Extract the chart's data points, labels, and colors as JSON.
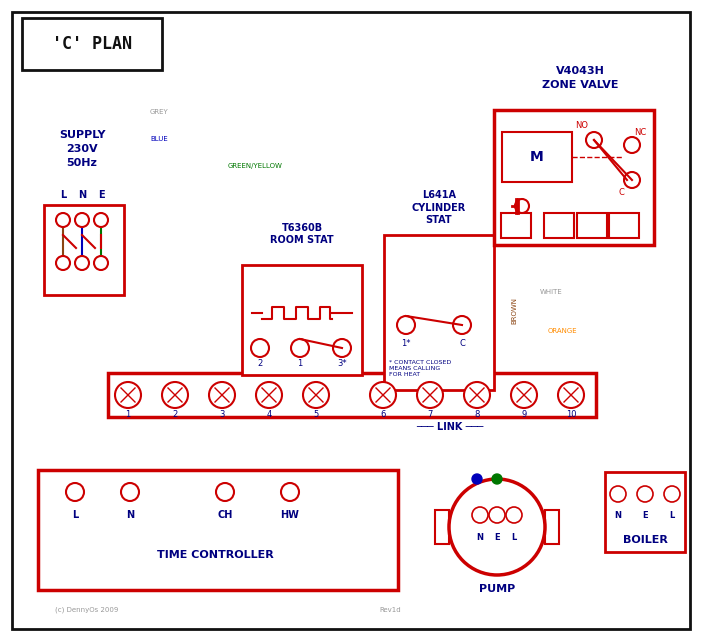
{
  "title": "'C' PLAN",
  "red": "#cc0000",
  "blue": "#0000bb",
  "green": "#007700",
  "grey": "#999999",
  "brown": "#8B4513",
  "orange": "#FF8C00",
  "black": "#111111",
  "dark_blue": "#000080",
  "white_wire": "#aaaaaa",
  "terminal_numbers": [
    "1",
    "2",
    "3",
    "4",
    "5",
    "6",
    "7",
    "8",
    "9",
    "10"
  ],
  "tc_labels": [
    "L",
    "N",
    "CH",
    "HW"
  ],
  "pump_labels": [
    "N",
    "E",
    "L"
  ],
  "boiler_labels": [
    "N",
    "E",
    "L"
  ],
  "supply_text": "SUPPLY\n230V\n50Hz",
  "lne_labels": [
    "L",
    "N",
    "E"
  ],
  "zone_valve_title": "V4043H\nZONE VALVE",
  "room_stat_title": "T6360B\nROOM STAT",
  "cyl_stat_title": "L641A\nCYLINDER\nSTAT",
  "cyl_note": "* CONTACT CLOSED\nMEANS CALLING\nFOR HEAT",
  "tc_label": "TIME CONTROLLER",
  "pump_label": "PUMP",
  "boiler_label": "BOILER",
  "link_label": "LINK",
  "copyright": "(c) DennyOs 2009",
  "rev": "Rev1d",
  "wire_grey_label": "GREY",
  "wire_blue_label": "BLUE",
  "wire_gy_label": "GREEN/YELLOW",
  "wire_brown_label": "BROWN",
  "wire_white_label": "WHITE",
  "wire_orange_label": "ORANGE"
}
